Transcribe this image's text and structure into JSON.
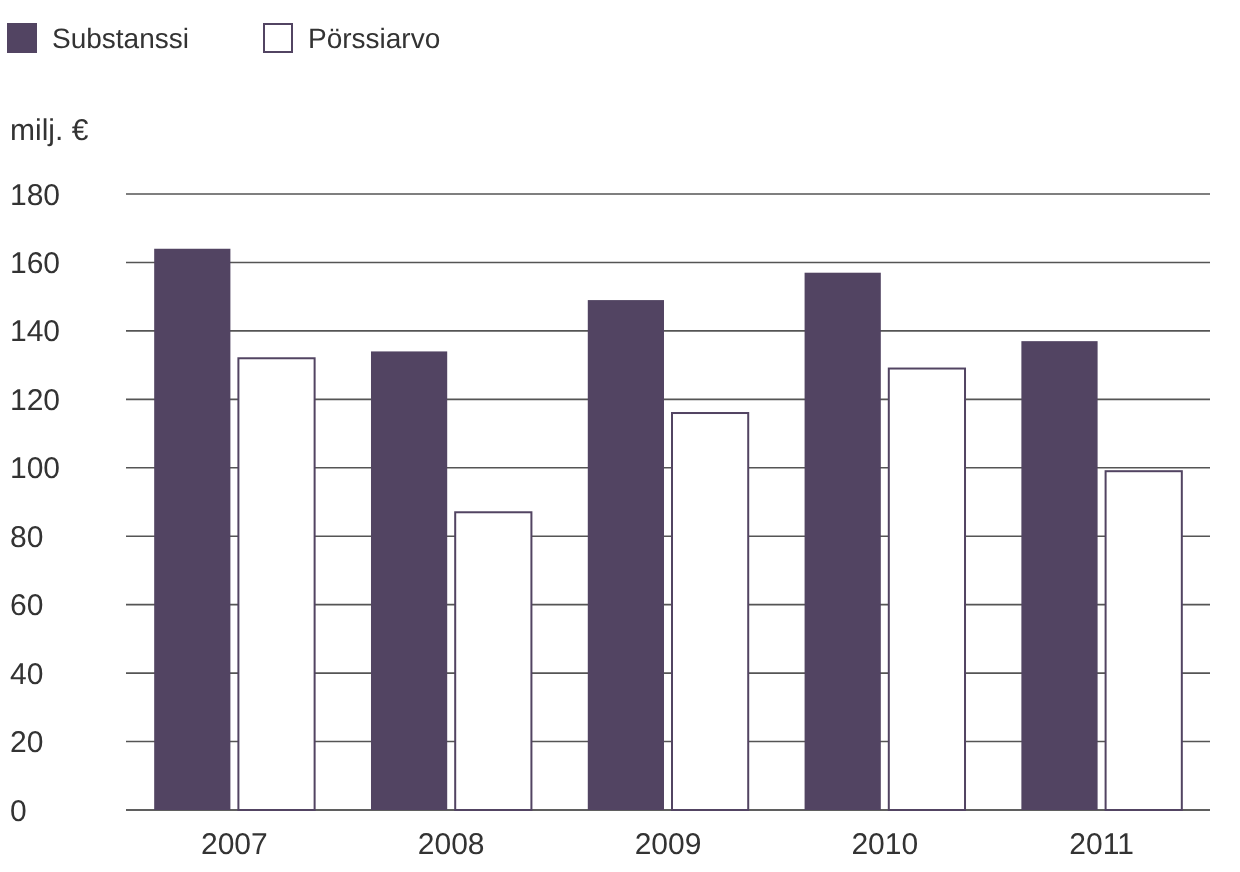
{
  "chart_data": {
    "type": "bar",
    "ylabel": "milj. €",
    "categories": [
      "2007",
      "2008",
      "2009",
      "2010",
      "2011"
    ],
    "series": [
      {
        "name": "Substanssi",
        "color": "#524462",
        "values": [
          164,
          134,
          149,
          157,
          137
        ]
      },
      {
        "name": "Pörssiarvo",
        "color": "#ffffff",
        "values": [
          132,
          87,
          116,
          129,
          99
        ]
      }
    ],
    "ylim": [
      0,
      180
    ],
    "yticks": [
      0,
      20,
      40,
      60,
      80,
      100,
      120,
      140,
      160,
      180
    ],
    "grid": "y",
    "legend": "top left"
  }
}
